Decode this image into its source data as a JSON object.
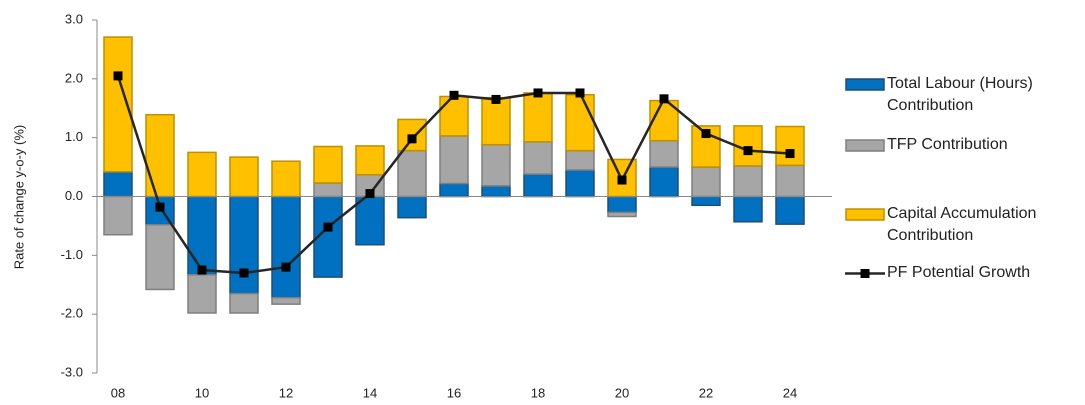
{
  "chart_data": {
    "type": "bar",
    "stacked": true,
    "y_label": "Rate of change y-o-y (%)",
    "categories": [
      "08",
      null,
      "10",
      null,
      "12",
      null,
      "14",
      null,
      "16",
      null,
      "18",
      null,
      "20",
      null,
      "22",
      null,
      "24"
    ],
    "ylim": [
      -3,
      3
    ],
    "yticks": [
      {
        "value": -3,
        "label": "-3.0"
      },
      {
        "value": -2,
        "label": "-2.0"
      },
      {
        "value": -1,
        "label": "-1.0"
      },
      {
        "value": 0,
        "label": "0.0"
      },
      {
        "value": 1,
        "label": "1.0"
      },
      {
        "value": 2,
        "label": "2.0"
      },
      {
        "value": 3,
        "label": "3.0"
      }
    ],
    "series": [
      {
        "name": "Total Labour (Hours) Contribution",
        "type": "bar",
        "color": "#0070c0",
        "values": [
          0.42,
          -0.48,
          -1.33,
          -1.65,
          -1.72,
          -1.37,
          -0.82,
          -0.36,
          0.22,
          0.18,
          0.38,
          0.45,
          -0.27,
          0.5,
          -0.15,
          -0.43,
          -0.47
        ]
      },
      {
        "name": "TFP Contribution",
        "type": "bar",
        "color": "#a6a6a6",
        "values": [
          -0.65,
          -1.1,
          -0.65,
          -0.33,
          -0.11,
          0.23,
          0.37,
          0.78,
          0.81,
          0.7,
          0.55,
          0.33,
          -0.07,
          0.45,
          0.5,
          0.52,
          0.53
        ]
      },
      {
        "name": "Capital Accumulation Contribution",
        "type": "bar",
        "color": "#ffc000",
        "values": [
          2.29,
          1.39,
          0.75,
          0.67,
          0.6,
          0.62,
          0.49,
          0.53,
          0.67,
          0.8,
          0.83,
          0.95,
          0.63,
          0.68,
          0.7,
          0.68,
          0.66
        ]
      },
      {
        "name": "PF Potential Growth",
        "type": "line",
        "color": "#262626",
        "values": [
          2.05,
          -0.18,
          -1.25,
          -1.3,
          -1.2,
          -0.52,
          0.05,
          0.98,
          1.72,
          1.65,
          1.76,
          1.76,
          0.28,
          1.66,
          1.07,
          0.78,
          0.73
        ]
      }
    ]
  }
}
